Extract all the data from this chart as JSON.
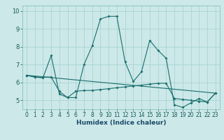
{
  "xlabel": "Humidex (Indice chaleur)",
  "bg_color": "#cce8e8",
  "grid_color": "#aad4d4",
  "line_color": "#1a6e6e",
  "xlim": [
    -0.5,
    23.5
  ],
  "ylim": [
    4.5,
    10.3
  ],
  "xticks": [
    0,
    1,
    2,
    3,
    4,
    5,
    6,
    7,
    8,
    9,
    10,
    11,
    12,
    13,
    14,
    15,
    16,
    17,
    18,
    19,
    20,
    21,
    22,
    23
  ],
  "yticks": [
    5,
    6,
    7,
    8,
    9,
    10
  ],
  "series1_x": [
    0,
    1,
    2,
    3,
    4,
    5,
    6,
    7,
    8,
    9,
    10,
    11,
    12,
    13,
    14,
    15,
    16,
    17,
    18,
    19,
    20,
    21,
    22,
    23
  ],
  "series1_y": [
    6.4,
    6.3,
    6.25,
    7.5,
    5.35,
    5.15,
    5.15,
    7.0,
    8.05,
    9.55,
    9.7,
    9.7,
    7.15,
    6.05,
    6.6,
    8.35,
    7.8,
    7.35,
    4.75,
    4.6,
    4.85,
    5.1,
    4.9,
    5.4
  ],
  "series2_x": [
    0,
    1,
    2,
    3,
    4,
    5,
    6,
    7,
    8,
    9,
    10,
    11,
    12,
    13,
    14,
    15,
    16,
    17,
    18,
    19,
    20,
    21,
    22,
    23
  ],
  "series2_y": [
    6.4,
    6.3,
    6.3,
    6.3,
    5.5,
    5.15,
    5.5,
    5.55,
    5.55,
    5.6,
    5.65,
    5.7,
    5.75,
    5.8,
    5.85,
    5.9,
    5.95,
    5.95,
    5.1,
    5.05,
    5.0,
    4.95,
    4.9,
    5.4
  ],
  "series3_x": [
    0,
    23
  ],
  "series3_y": [
    6.4,
    5.4
  ],
  "tick_fontsize": 5.5,
  "xlabel_fontsize": 6.5
}
